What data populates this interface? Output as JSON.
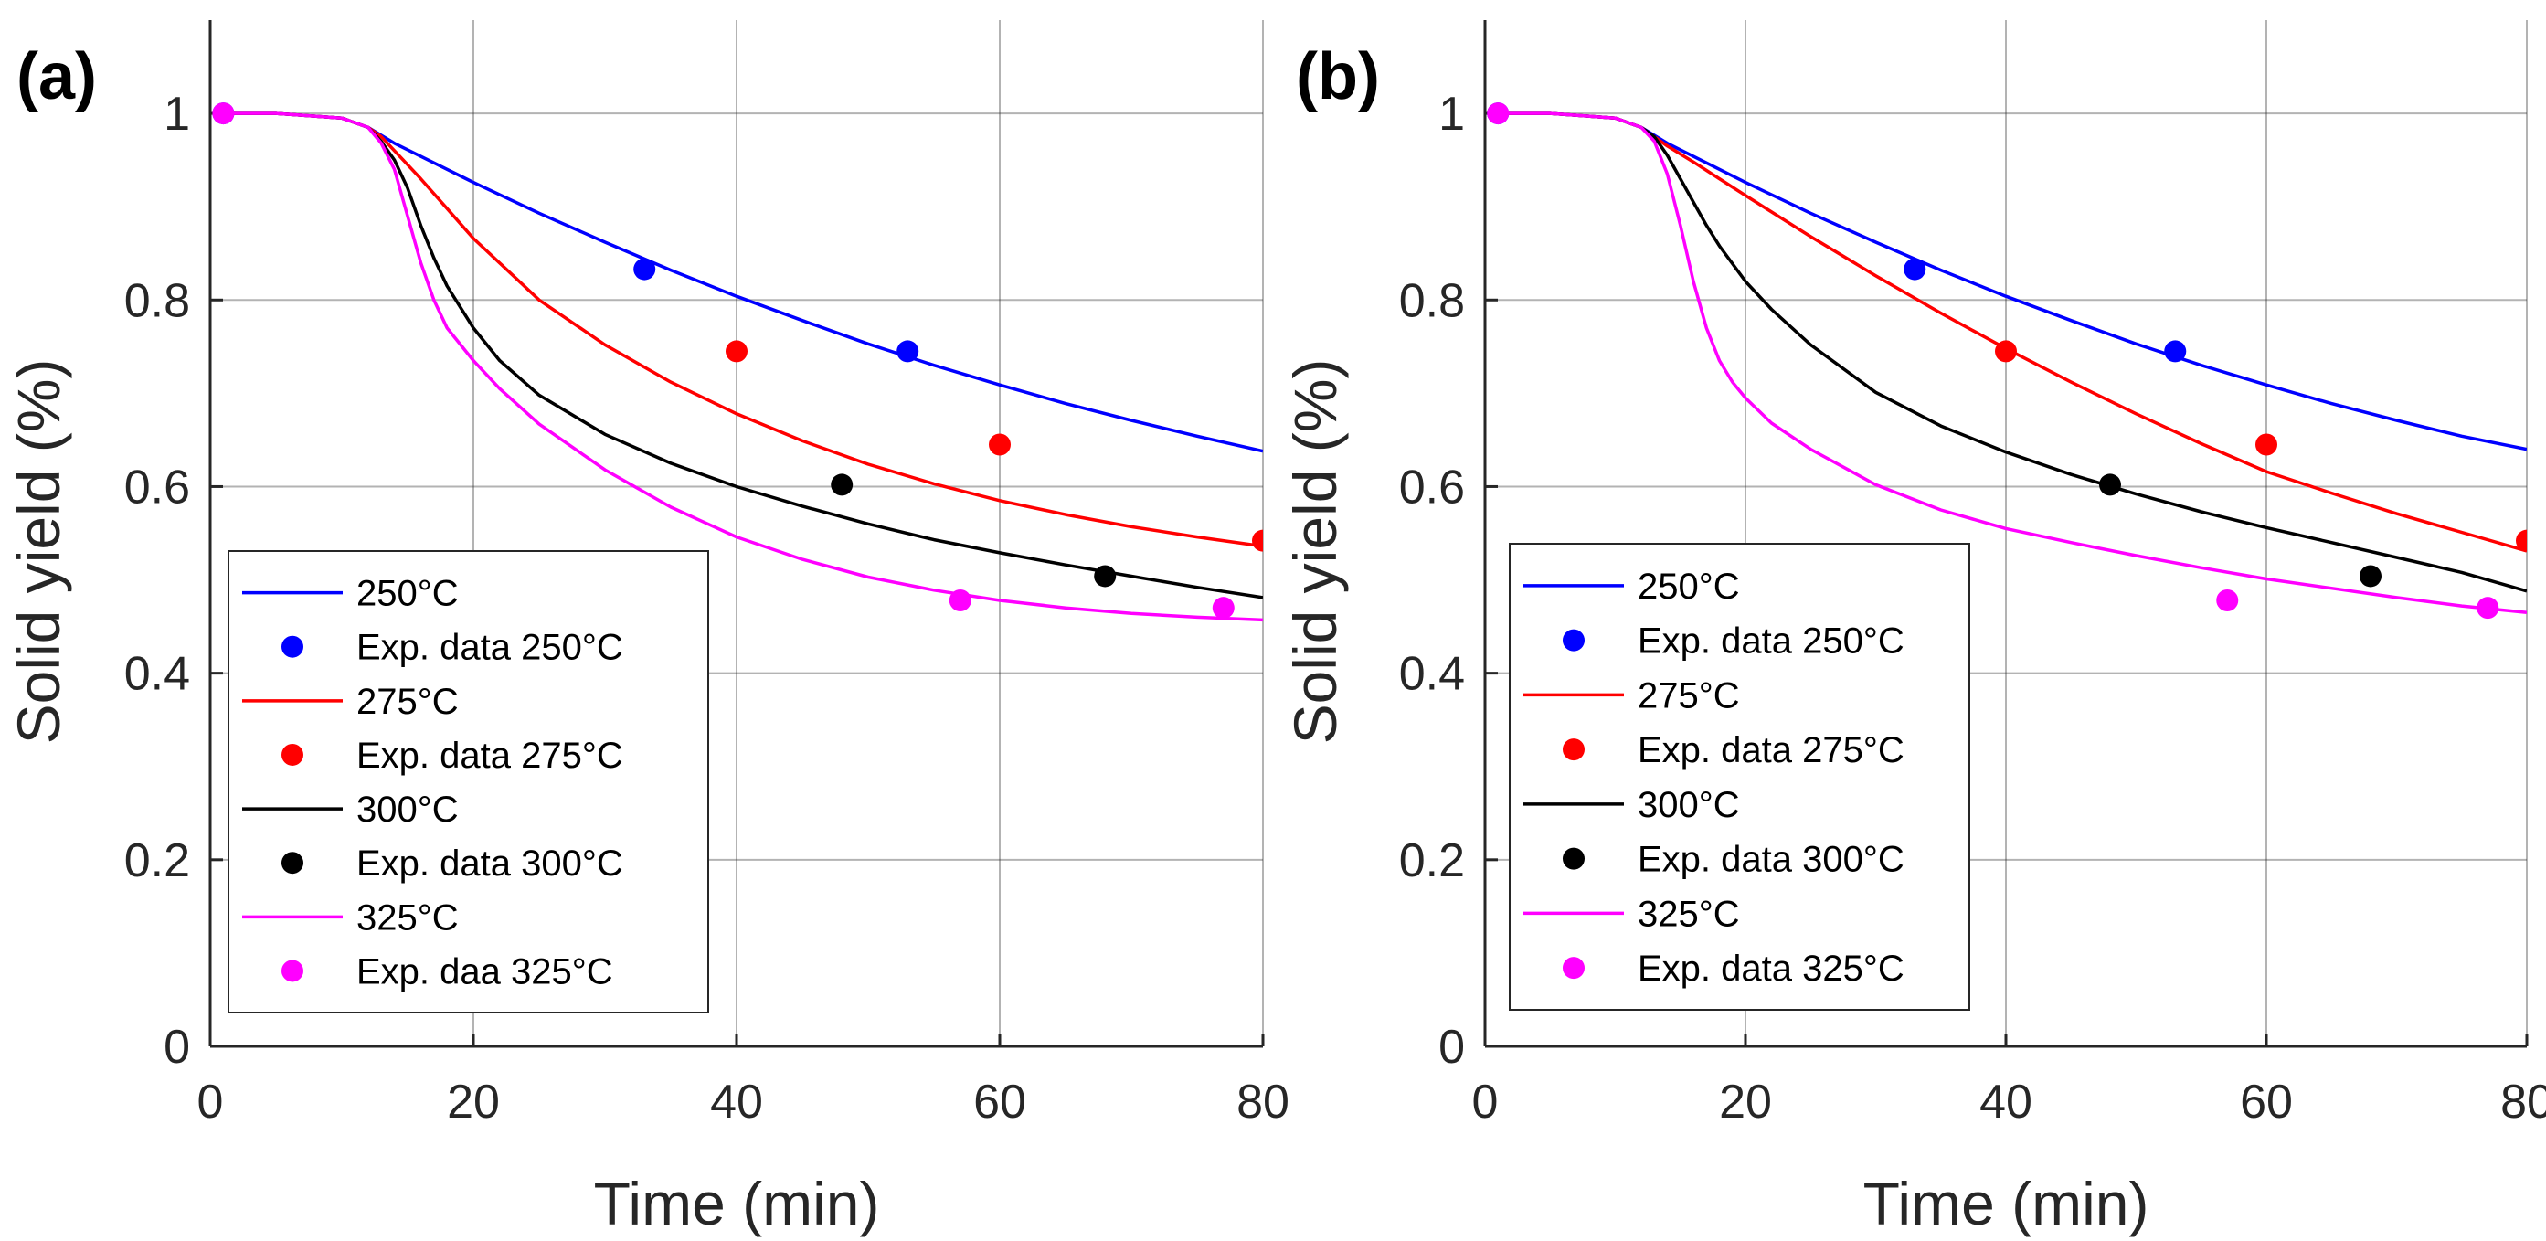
{
  "chart_data": [
    {
      "type": "line",
      "panel_label": "(a)",
      "xlabel": "Time (min)",
      "ylabel": "Solid yield (%)",
      "xlim": [
        0,
        80
      ],
      "ylim": [
        0,
        1.1
      ],
      "xticks": [
        "0",
        "20",
        "40",
        "60",
        "80"
      ],
      "yticks": [
        "0",
        "0.2",
        "0.4",
        "0.6",
        "0.8",
        "1"
      ],
      "grid": true,
      "legend_position": "bottom-left",
      "series": [
        {
          "name": "250°C",
          "color": "#0000ff",
          "kind": "line",
          "x": [
            1,
            5,
            10,
            12,
            14,
            16,
            18,
            20,
            25,
            30,
            35,
            40,
            45,
            50,
            55,
            60,
            65,
            70,
            75,
            80
          ],
          "y": [
            1,
            1,
            0.995,
            0.985,
            0.968,
            0.954,
            0.94,
            0.926,
            0.893,
            0.862,
            0.832,
            0.804,
            0.778,
            0.753,
            0.73,
            0.709,
            0.689,
            0.671,
            0.654,
            0.638
          ]
        },
        {
          "name": "Exp. data 250°C",
          "color": "#0000ff",
          "kind": "points",
          "x": [
            1,
            33,
            53
          ],
          "y": [
            1,
            0.833,
            0.745
          ]
        },
        {
          "name": "275°C",
          "color": "#ff0000",
          "kind": "line",
          "x": [
            1,
            5,
            10,
            12,
            13,
            14,
            15,
            16,
            18,
            20,
            25,
            30,
            35,
            40,
            45,
            50,
            55,
            60,
            65,
            70,
            75,
            80
          ],
          "y": [
            1,
            1,
            0.995,
            0.985,
            0.975,
            0.96,
            0.945,
            0.93,
            0.898,
            0.866,
            0.8,
            0.752,
            0.712,
            0.678,
            0.649,
            0.624,
            0.603,
            0.585,
            0.57,
            0.557,
            0.546,
            0.536
          ]
        },
        {
          "name": "Exp. data 275°C",
          "color": "#ff0000",
          "kind": "points",
          "x": [
            40,
            60,
            80
          ],
          "y": [
            0.745,
            0.645,
            0.542
          ]
        },
        {
          "name": "300°C",
          "color": "#000000",
          "kind": "line",
          "x": [
            1,
            5,
            10,
            12,
            13,
            14,
            15,
            16,
            17,
            18,
            20,
            22,
            25,
            30,
            35,
            40,
            45,
            50,
            55,
            60,
            65,
            70,
            75,
            80
          ],
          "y": [
            1,
            1,
            0.995,
            0.985,
            0.97,
            0.95,
            0.92,
            0.88,
            0.845,
            0.815,
            0.77,
            0.735,
            0.698,
            0.656,
            0.625,
            0.6,
            0.579,
            0.56,
            0.543,
            0.529,
            0.516,
            0.504,
            0.492,
            0.481
          ]
        },
        {
          "name": "Exp. data 300°C",
          "color": "#000000",
          "kind": "points",
          "x": [
            48,
            68
          ],
          "y": [
            0.602,
            0.504
          ]
        },
        {
          "name": "325°C",
          "color": "#ff00ff",
          "kind": "line",
          "x": [
            1,
            5,
            10,
            12,
            13,
            14,
            15,
            16,
            17,
            18,
            20,
            22,
            25,
            30,
            35,
            40,
            45,
            50,
            55,
            60,
            65,
            70,
            75,
            80
          ],
          "y": [
            1,
            1,
            0.995,
            0.985,
            0.968,
            0.94,
            0.89,
            0.84,
            0.8,
            0.77,
            0.735,
            0.705,
            0.667,
            0.618,
            0.578,
            0.546,
            0.522,
            0.503,
            0.489,
            0.478,
            0.47,
            0.464,
            0.46,
            0.457
          ]
        },
        {
          "name": "Exp. daa 325°C",
          "color": "#ff00ff",
          "kind": "points",
          "x": [
            1,
            57,
            77
          ],
          "y": [
            1,
            0.478,
            0.47
          ]
        }
      ]
    },
    {
      "type": "line",
      "panel_label": "(b)",
      "xlabel": "Time (min)",
      "ylabel": "Solid yield (%)",
      "xlim": [
        0,
        80
      ],
      "ylim": [
        0,
        1.1
      ],
      "xticks": [
        "0",
        "20",
        "40",
        "60",
        "80"
      ],
      "yticks": [
        "0",
        "0.2",
        "0.4",
        "0.6",
        "0.8",
        "1"
      ],
      "grid": true,
      "legend_position": "bottom-left",
      "series": [
        {
          "name": "250°C",
          "color": "#0000ff",
          "kind": "line",
          "x": [
            1,
            5,
            10,
            12,
            14,
            16,
            18,
            20,
            25,
            30,
            35,
            40,
            45,
            50,
            55,
            60,
            65,
            70,
            75,
            80
          ],
          "y": [
            1,
            1,
            0.995,
            0.985,
            0.968,
            0.954,
            0.94,
            0.926,
            0.893,
            0.862,
            0.832,
            0.804,
            0.778,
            0.753,
            0.73,
            0.709,
            0.689,
            0.671,
            0.654,
            0.64
          ]
        },
        {
          "name": "Exp. data 250°C",
          "color": "#0000ff",
          "kind": "points",
          "x": [
            1,
            33,
            53
          ],
          "y": [
            1,
            0.833,
            0.745
          ]
        },
        {
          "name": "275°C",
          "color": "#ff0000",
          "kind": "line",
          "x": [
            1,
            5,
            10,
            12,
            14,
            16,
            18,
            20,
            25,
            30,
            35,
            40,
            45,
            50,
            55,
            60,
            65,
            70,
            75,
            80
          ],
          "y": [
            1,
            1,
            0.995,
            0.985,
            0.965,
            0.948,
            0.93,
            0.912,
            0.868,
            0.826,
            0.786,
            0.748,
            0.712,
            0.678,
            0.646,
            0.616,
            0.593,
            0.571,
            0.551,
            0.531
          ]
        },
        {
          "name": "Exp. data 275°C",
          "color": "#ff0000",
          "kind": "points",
          "x": [
            40,
            60,
            80
          ],
          "y": [
            0.745,
            0.645,
            0.542
          ]
        },
        {
          "name": "300°C",
          "color": "#000000",
          "kind": "line",
          "x": [
            1,
            5,
            10,
            12,
            13,
            14,
            15,
            16,
            17,
            18,
            20,
            22,
            25,
            30,
            35,
            40,
            45,
            50,
            55,
            60,
            65,
            70,
            75,
            80
          ],
          "y": [
            1,
            1,
            0.995,
            0.985,
            0.975,
            0.955,
            0.93,
            0.905,
            0.88,
            0.858,
            0.82,
            0.79,
            0.752,
            0.701,
            0.665,
            0.637,
            0.613,
            0.592,
            0.573,
            0.556,
            0.54,
            0.524,
            0.508,
            0.488
          ]
        },
        {
          "name": "Exp. data 300°C",
          "color": "#000000",
          "kind": "points",
          "x": [
            48,
            68
          ],
          "y": [
            0.602,
            0.504
          ]
        },
        {
          "name": "325°C",
          "color": "#ff00ff",
          "kind": "line",
          "x": [
            1,
            5,
            10,
            12,
            13,
            14,
            15,
            16,
            17,
            18,
            19,
            20,
            22,
            25,
            30,
            35,
            40,
            45,
            50,
            55,
            60,
            65,
            70,
            75,
            80
          ],
          "y": [
            1,
            1,
            0.995,
            0.985,
            0.97,
            0.935,
            0.88,
            0.82,
            0.77,
            0.735,
            0.712,
            0.695,
            0.668,
            0.64,
            0.602,
            0.575,
            0.555,
            0.54,
            0.526,
            0.513,
            0.501,
            0.491,
            0.481,
            0.472,
            0.465
          ]
        },
        {
          "name": "Exp. data 325°C",
          "color": "#ff00ff",
          "kind": "points",
          "x": [
            1,
            57,
            77
          ],
          "y": [
            1,
            0.478,
            0.47
          ]
        }
      ]
    }
  ]
}
